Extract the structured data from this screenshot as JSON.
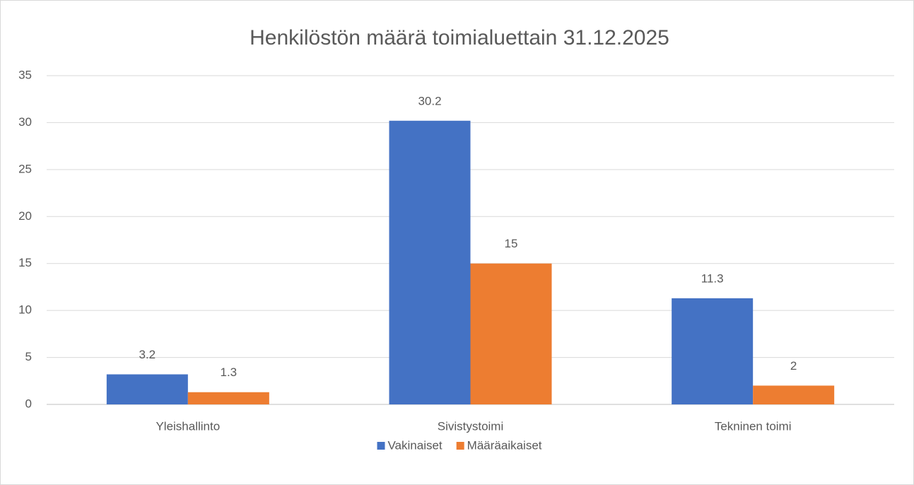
{
  "chart_data": {
    "type": "bar",
    "title": "Henkilöstön määrä toimialuettain 31.12.2025",
    "categories": [
      "Yleishallinto",
      "Sivistystoimi",
      "Tekninen toimi"
    ],
    "series": [
      {
        "name": "Vakinaiset",
        "color": "#4472c4",
        "values": [
          3.2,
          30.2,
          11.3
        ]
      },
      {
        "name": "Määräaikaiset",
        "color": "#ed7d31",
        "values": [
          1.3,
          15,
          2
        ]
      }
    ],
    "ylim": [
      0,
      35
    ],
    "yticks": [
      0,
      5,
      10,
      15,
      20,
      25,
      30,
      35
    ],
    "grid": true,
    "legend": "bottom"
  }
}
